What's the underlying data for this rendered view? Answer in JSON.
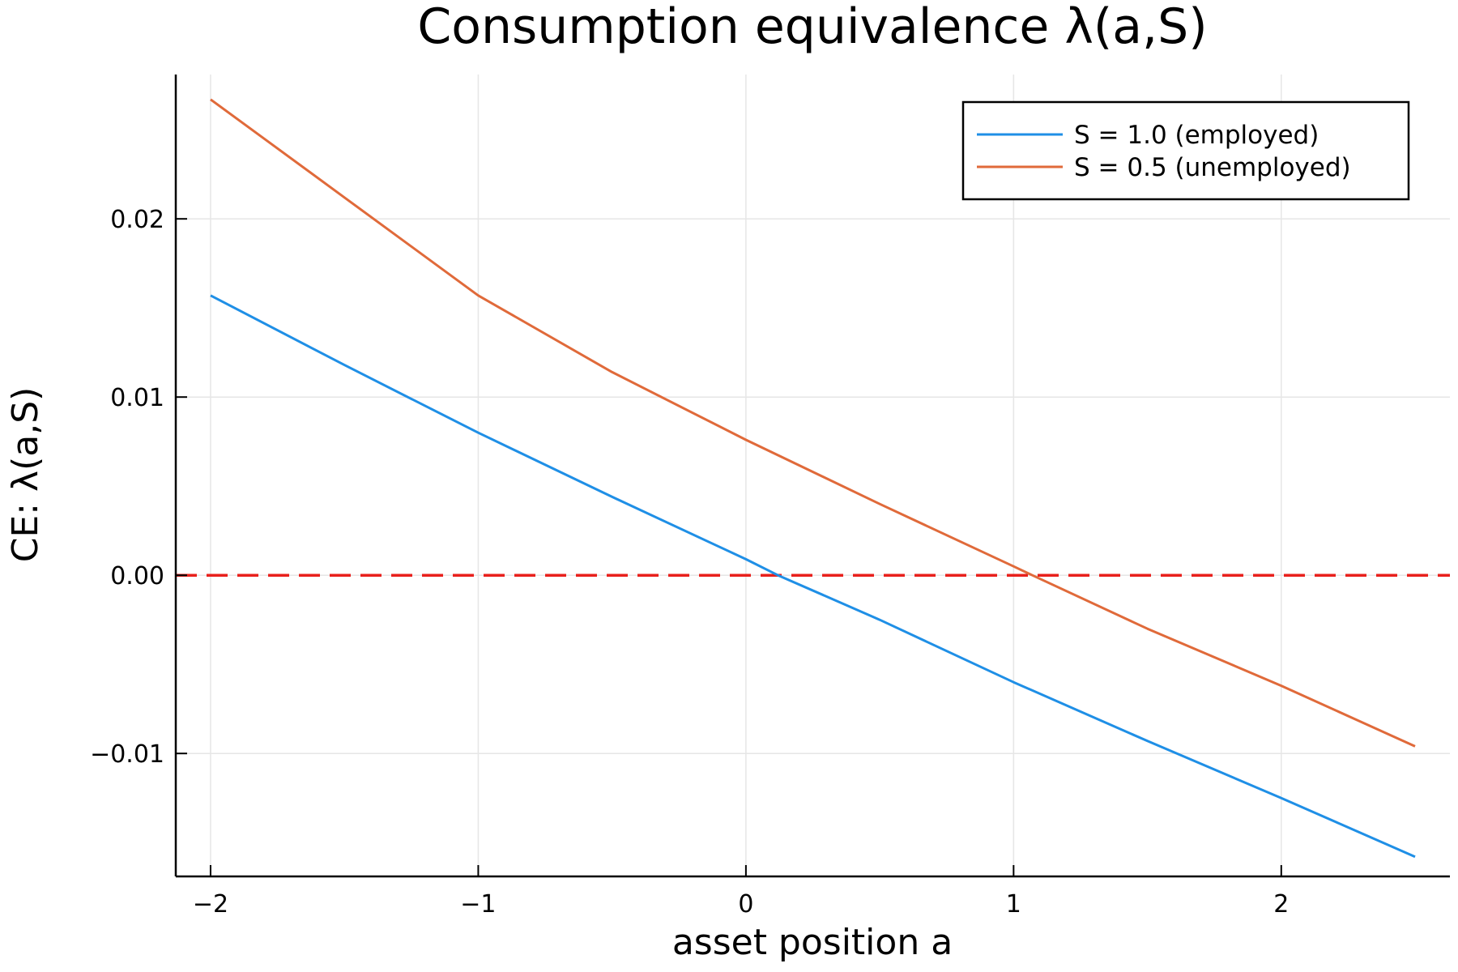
{
  "chart_data": {
    "type": "line",
    "title": "Consumption equivalence λ(a,S)",
    "xlabel": "asset position a",
    "ylabel": "CE: λ(a,S)",
    "xlim": [
      -2.13,
      2.63
    ],
    "ylim": [
      -0.0169,
      0.0281
    ],
    "xticks": [
      -2,
      -1,
      0,
      1,
      2
    ],
    "xtick_labels": [
      "−2",
      "−1",
      "0",
      "1",
      "2"
    ],
    "yticks": [
      -0.01,
      0.0,
      0.01,
      0.02
    ],
    "ytick_labels": [
      "−0.01",
      "0.00",
      "0.01",
      "0.02"
    ],
    "grid": true,
    "legend_position": "top-right",
    "reference_line": {
      "y": 0.0,
      "color": "#e8201c",
      "style": "dashed"
    },
    "series": [
      {
        "name": "S = 1.0 (employed)",
        "color": "#1f8fe6",
        "x": [
          -2.0,
          -1.5,
          -1.0,
          -0.5,
          0.0,
          0.12,
          0.5,
          1.0,
          1.5,
          2.0,
          2.5
        ],
        "y": [
          0.0157,
          0.0118,
          0.008,
          0.0044,
          0.0009,
          0.0,
          -0.0025,
          -0.006,
          -0.0093,
          -0.0125,
          -0.0158
        ]
      },
      {
        "name": "S = 0.5 (unemployed)",
        "color": "#e06a3a",
        "x": [
          -2.0,
          -1.8,
          -1.5,
          -1.0,
          -0.5,
          0.0,
          0.5,
          1.0,
          1.07,
          1.5,
          2.0,
          2.5
        ],
        "y": [
          0.0267,
          0.0245,
          0.0212,
          0.0157,
          0.0114,
          0.0076,
          0.004,
          0.0005,
          0.0,
          -0.003,
          -0.0062,
          -0.0096
        ]
      }
    ]
  }
}
